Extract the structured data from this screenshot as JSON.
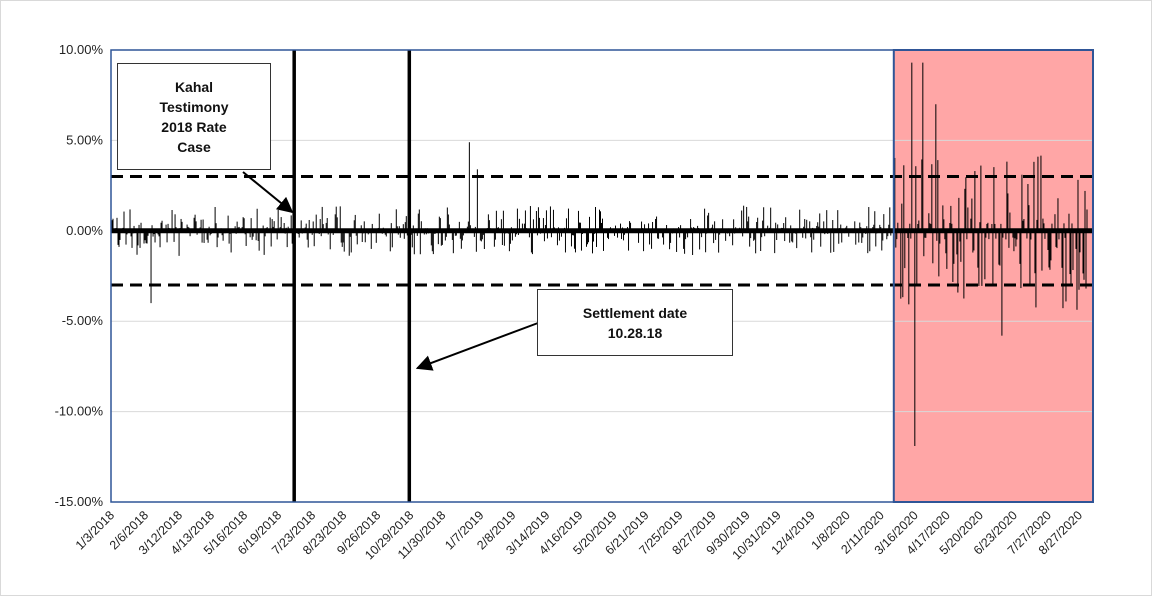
{
  "chart_data": {
    "type": "bar",
    "title": "",
    "xlabel": "",
    "ylabel": "",
    "ylim": [
      -15,
      10
    ],
    "y_ticks": [
      10,
      5,
      0,
      -5,
      -10,
      -15
    ],
    "y_tick_labels": [
      "10.00%",
      "5.00%",
      "0.00%",
      "-5.00%",
      "-10.00%",
      "-15.00%"
    ],
    "x_range": [
      "2018-01-03",
      "2020-09-10"
    ],
    "x_tick_dates": [
      "2018-01-03",
      "2018-02-06",
      "2018-03-12",
      "2018-04-13",
      "2018-05-16",
      "2018-06-19",
      "2018-07-23",
      "2018-08-23",
      "2018-09-26",
      "2018-10-29",
      "2018-11-30",
      "2019-01-07",
      "2019-02-08",
      "2019-03-14",
      "2019-04-16",
      "2019-05-20",
      "2019-06-21",
      "2019-07-25",
      "2019-08-27",
      "2019-09-30",
      "2019-10-31",
      "2019-12-04",
      "2020-01-08",
      "2020-02-11",
      "2020-03-16",
      "2020-04-17",
      "2020-05-20",
      "2020-06-23",
      "2020-07-27",
      "2020-08-27"
    ],
    "x_tick_labels": [
      "1/3/2018",
      "2/6/2018",
      "3/12/2018",
      "4/13/2018",
      "5/16/2018",
      "6/19/2018",
      "7/23/2018",
      "8/23/2018",
      "9/26/2018",
      "10/29/2018",
      "11/30/2018",
      "1/7/2019",
      "2/8/2019",
      "3/14/2019",
      "4/16/2019",
      "5/20/2019",
      "6/21/2019",
      "7/25/2019",
      "8/27/2019",
      "9/30/2019",
      "10/31/2019",
      "12/4/2019",
      "1/8/2020",
      "2/11/2020",
      "3/16/2020",
      "4/17/2020",
      "5/20/2020",
      "6/23/2020",
      "7/27/2020",
      "8/27/2020"
    ],
    "reference_lines": [
      {
        "kind": "horizontal",
        "style": "dashed",
        "y": 3
      },
      {
        "kind": "horizontal",
        "style": "dashed",
        "y": -3
      },
      {
        "kind": "vertical",
        "style": "solid",
        "x": "2018-07-05"
      },
      {
        "kind": "vertical",
        "style": "solid",
        "x": "2018-10-28"
      }
    ],
    "highlight_region": {
      "x_start": "2020-02-24",
      "x_end": "2020-09-10",
      "y_start": -15,
      "y_end": 10,
      "color": "#ffa6a6"
    },
    "annotations": [
      {
        "text": "Kahal Testimony 2018 Rate Case",
        "points_to": {
          "x": "2018-07-05",
          "y": 1.2
        }
      },
      {
        "text": "Settlement date 10.28.18",
        "points_to": {
          "x": "2018-10-28",
          "y": -7.6
        }
      }
    ],
    "notable_values": [
      {
        "x": "2018-02-12",
        "y": -4.0
      },
      {
        "x": "2018-12-27",
        "y": 4.9
      },
      {
        "x": "2019-01-04",
        "y": 3.4
      },
      {
        "x": "2020-03-13",
        "y": 9.3
      },
      {
        "x": "2020-03-16",
        "y": -11.9
      },
      {
        "x": "2020-03-24",
        "y": 9.3
      },
      {
        "x": "2020-04-06",
        "y": 7.0
      },
      {
        "x": "2020-06-11",
        "y": -5.8
      }
    ],
    "typical_abs_return_before": 0.8,
    "typical_abs_return_during_highlight": 2.5,
    "grid": true,
    "colors": {
      "bars": "#000000",
      "grid": "#d9d9d9",
      "plot_border": "#2f5597",
      "highlight": "#ffa6a6"
    }
  },
  "annotations": {
    "kahal": "Kahal Testimony 2018 Rate Case",
    "settlement_line1": "Settlement date",
    "settlement_line2": "10.28.18"
  }
}
